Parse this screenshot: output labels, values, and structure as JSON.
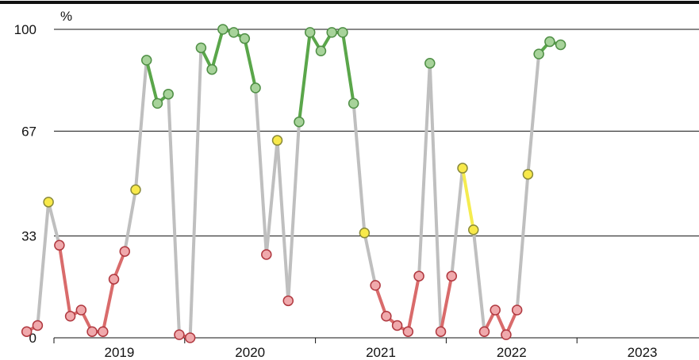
{
  "chart_data": {
    "type": "line",
    "ylabel": "%",
    "ylim": [
      0,
      100
    ],
    "yticks": [
      0,
      33,
      67,
      100
    ],
    "ytick_labels": [
      "0",
      "33",
      "67",
      "100"
    ],
    "xticks": [
      "2019",
      "2020",
      "2021",
      "2022",
      "2023"
    ],
    "grid": "horizontal",
    "colors": {
      "grey": "#bfbfbf",
      "red": "#d96b6b",
      "yellow": "#f5ec4f",
      "green": "#5aa64a",
      "fill_red": "#f0a9ac",
      "fill_yellow": "#f8e94a",
      "fill_green": "#a7d39a",
      "stroke_red": "#b0383f",
      "stroke_yellow": "#8a8a3a",
      "stroke_green": "#4f8f45",
      "gridline": "#111111"
    },
    "points": [
      {
        "date": "2018-10",
        "value": 2,
        "status": "red"
      },
      {
        "date": "2018-11",
        "value": 4,
        "status": "red"
      },
      {
        "date": "2018-12",
        "value": 44,
        "status": "yellow"
      },
      {
        "date": "2019-01",
        "value": 30,
        "status": "red"
      },
      {
        "date": "2019-02",
        "value": 7,
        "status": "red"
      },
      {
        "date": "2019-03",
        "value": 9,
        "status": "red"
      },
      {
        "date": "2019-04",
        "value": 2,
        "status": "red"
      },
      {
        "date": "2019-05",
        "value": 2,
        "status": "red"
      },
      {
        "date": "2019-06",
        "value": 19,
        "status": "red"
      },
      {
        "date": "2019-07",
        "value": 28,
        "status": "red"
      },
      {
        "date": "2019-08",
        "value": 48,
        "status": "yellow"
      },
      {
        "date": "2019-09",
        "value": 90,
        "status": "green"
      },
      {
        "date": "2019-10",
        "value": 76,
        "status": "green"
      },
      {
        "date": "2019-11",
        "value": 79,
        "status": "green"
      },
      {
        "date": "2019-12",
        "value": 1,
        "status": "red"
      },
      {
        "date": "2020-01",
        "value": 0,
        "status": "red"
      },
      {
        "date": "2020-02",
        "value": 94,
        "status": "green"
      },
      {
        "date": "2020-03",
        "value": 87,
        "status": "green"
      },
      {
        "date": "2020-04",
        "value": 100,
        "status": "green"
      },
      {
        "date": "2020-05",
        "value": 99,
        "status": "green"
      },
      {
        "date": "2020-06",
        "value": 97,
        "status": "green"
      },
      {
        "date": "2020-07",
        "value": 81,
        "status": "green"
      },
      {
        "date": "2020-08",
        "value": 27,
        "status": "red"
      },
      {
        "date": "2020-09",
        "value": 64,
        "status": "yellow"
      },
      {
        "date": "2020-10",
        "value": 12,
        "status": "red"
      },
      {
        "date": "2020-11",
        "value": 70,
        "status": "green"
      },
      {
        "date": "2020-12",
        "value": 99,
        "status": "green"
      },
      {
        "date": "2021-01",
        "value": 93,
        "status": "green"
      },
      {
        "date": "2021-02",
        "value": 99,
        "status": "green"
      },
      {
        "date": "2021-03",
        "value": 99,
        "status": "green"
      },
      {
        "date": "2021-04",
        "value": 76,
        "status": "green"
      },
      {
        "date": "2021-05",
        "value": 34,
        "status": "yellow"
      },
      {
        "date": "2021-06",
        "value": 17,
        "status": "red"
      },
      {
        "date": "2021-07",
        "value": 7,
        "status": "red"
      },
      {
        "date": "2021-08",
        "value": 4,
        "status": "red"
      },
      {
        "date": "2021-09",
        "value": 2,
        "status": "red"
      },
      {
        "date": "2021-10",
        "value": 20,
        "status": "red"
      },
      {
        "date": "2021-11",
        "value": 89,
        "status": "green"
      },
      {
        "date": "2021-12",
        "value": 2,
        "status": "red"
      },
      {
        "date": "2022-01",
        "value": 20,
        "status": "red"
      },
      {
        "date": "2022-02",
        "value": 55,
        "status": "yellow"
      },
      {
        "date": "2022-03",
        "value": 35,
        "status": "yellow"
      },
      {
        "date": "2022-04",
        "value": 2,
        "status": "red"
      },
      {
        "date": "2022-05",
        "value": 9,
        "status": "red"
      },
      {
        "date": "2022-06",
        "value": 1,
        "status": "red"
      },
      {
        "date": "2022-07",
        "value": 9,
        "status": "red"
      },
      {
        "date": "2022-08",
        "value": 53,
        "status": "yellow"
      },
      {
        "date": "2022-09",
        "value": 92,
        "status": "green"
      },
      {
        "date": "2022-10",
        "value": 96,
        "status": "green"
      },
      {
        "date": "2022-11",
        "value": 95,
        "status": "green"
      }
    ]
  }
}
